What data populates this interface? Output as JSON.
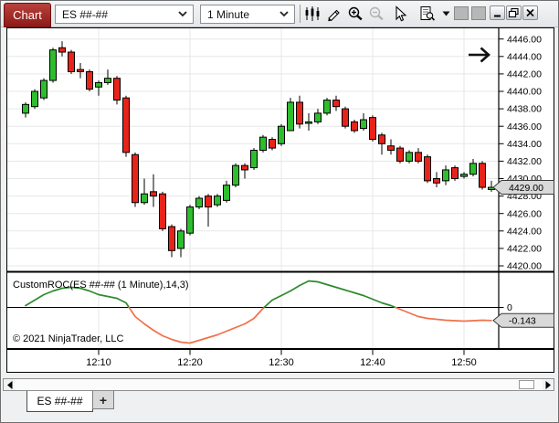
{
  "window": {
    "tab_label": "Chart"
  },
  "toolbar": {
    "instrument": "ES ##-##",
    "interval": "1 Minute"
  },
  "chart": {
    "price_marker": "4429.00",
    "indicator_label": "CustomROC(ES ##-## (1 Minute),14,3)",
    "indicator_zero_label": "0",
    "indicator_marker": "-0.143",
    "copyright": "© 2021 NinjaTrader, LLC"
  },
  "colors": {
    "candle_up": "#2ebd2e",
    "candle_down": "#e8231a",
    "candle_outline": "#000000",
    "roc_positive": "#2e8b2e",
    "roc_negative": "#f0714a",
    "grid": "#e7e7e7",
    "marker_bg": "#d9d9d9",
    "axis_text": "#000000",
    "chart_tab_red": "#9b1c1c"
  },
  "chart_data": {
    "type": "candlestick",
    "x_tick_labels": [
      "12:10",
      "12:20",
      "12:30",
      "12:40",
      "12:50"
    ],
    "x_tick_bar_index": [
      8,
      18,
      28,
      38,
      48
    ],
    "grid": true,
    "legend_position": "none",
    "panels": [
      {
        "name": "price",
        "type": "candlestick",
        "y_axis_side": "right",
        "y_tick_labels": [
          "4446.00",
          "4444.00",
          "4442.00",
          "4440.00",
          "4438.00",
          "4436.00",
          "4434.00",
          "4432.00",
          "4430.00",
          "4428.00",
          "4426.00",
          "4424.00",
          "4422.00",
          "4420.00"
        ],
        "ylim": [
          4419.3,
          4447.3
        ],
        "last_price": 4429.0,
        "ohlc": [
          [
            4437.5,
            4438.75,
            4437.0,
            4438.5
          ],
          [
            4438.25,
            4440.25,
            4438.0,
            4440.0
          ],
          [
            4439.25,
            4441.5,
            4439.0,
            4441.25
          ],
          [
            4441.25,
            4445.0,
            4441.0,
            4444.75
          ],
          [
            4445.0,
            4445.75,
            4444.0,
            4444.5
          ],
          [
            4444.5,
            4444.75,
            4442.0,
            4442.25
          ],
          [
            4442.5,
            4443.25,
            4441.5,
            4442.25
          ],
          [
            4442.25,
            4442.5,
            4440.0,
            4440.25
          ],
          [
            4440.5,
            4441.25,
            4439.5,
            4441.0
          ],
          [
            4441.0,
            4442.5,
            4440.75,
            4441.5
          ],
          [
            4441.5,
            4441.75,
            4438.5,
            4439.0
          ],
          [
            4439.25,
            4439.5,
            4432.5,
            4433.0
          ],
          [
            4432.75,
            4433.0,
            4426.75,
            4427.25
          ],
          [
            4427.25,
            4430.0,
            4427.0,
            4428.25
          ],
          [
            4428.5,
            4430.5,
            4426.75,
            4428.0
          ],
          [
            4428.25,
            4428.5,
            4424.0,
            4424.25
          ],
          [
            4424.5,
            4424.75,
            4421.0,
            4421.75
          ],
          [
            4422.0,
            4424.25,
            4421.0,
            4424.0
          ],
          [
            4423.75,
            4427.0,
            4423.5,
            4426.75
          ],
          [
            4426.75,
            4428.0,
            4426.5,
            4427.75
          ],
          [
            4428.0,
            4428.25,
            4424.5,
            4426.75
          ],
          [
            4427.0,
            4428.25,
            4426.75,
            4428.0
          ],
          [
            4427.5,
            4429.75,
            4427.25,
            4429.25
          ],
          [
            4429.25,
            4431.75,
            4429.0,
            4431.5
          ],
          [
            4431.5,
            4431.75,
            4430.0,
            4431.0
          ],
          [
            4431.25,
            4433.5,
            4431.0,
            4433.25
          ],
          [
            4433.25,
            4435.0,
            4433.0,
            4434.75
          ],
          [
            4434.5,
            4434.75,
            4433.25,
            4433.5
          ],
          [
            4434.0,
            4436.25,
            4433.75,
            4436.0
          ],
          [
            4435.5,
            4439.25,
            4435.5,
            4438.75
          ],
          [
            4438.75,
            4439.5,
            4435.75,
            4436.25
          ],
          [
            4436.5,
            4437.5,
            4435.5,
            4436.5
          ],
          [
            4436.5,
            4438.0,
            4436.25,
            4437.5
          ],
          [
            4437.5,
            4439.25,
            4437.25,
            4439.0
          ],
          [
            4439.0,
            4439.5,
            4437.75,
            4438.25
          ],
          [
            4438.0,
            4438.25,
            4435.75,
            4436.0
          ],
          [
            4436.5,
            4436.75,
            4435.25,
            4435.5
          ],
          [
            4435.75,
            4437.5,
            4435.5,
            4436.75
          ],
          [
            4437.0,
            4437.25,
            4434.25,
            4434.5
          ],
          [
            4435.0,
            4435.25,
            4432.75,
            4434.0
          ],
          [
            4433.75,
            4434.5,
            4432.75,
            4433.25
          ],
          [
            4433.5,
            4433.75,
            4431.75,
            4432.0
          ],
          [
            4432.0,
            4433.25,
            4431.75,
            4433.0
          ],
          [
            4433.0,
            4433.5,
            4431.75,
            4432.0
          ],
          [
            4432.5,
            4432.75,
            4429.5,
            4429.75
          ],
          [
            4430.0,
            4430.75,
            4429.0,
            4429.5
          ],
          [
            4429.75,
            4431.5,
            4429.25,
            4431.0
          ],
          [
            4431.25,
            4431.5,
            4429.75,
            4430.0
          ],
          [
            4430.25,
            4430.75,
            4430.0,
            4430.5
          ],
          [
            4430.5,
            4432.25,
            4430.25,
            4431.75
          ],
          [
            4431.75,
            4432.0,
            4428.75,
            4429.0
          ],
          [
            4428.75,
            4429.75,
            4428.5,
            4429.0
          ]
        ]
      },
      {
        "name": "CustomROC",
        "type": "line",
        "zero_line": true,
        "last_value": -0.143,
        "values": [
          0.02,
          0.08,
          0.14,
          0.18,
          0.21,
          0.22,
          0.21,
          0.18,
          0.14,
          0.12,
          0.1,
          0.05,
          -0.1,
          -0.18,
          -0.25,
          -0.31,
          -0.35,
          -0.38,
          -0.39,
          -0.36,
          -0.33,
          -0.3,
          -0.26,
          -0.22,
          -0.18,
          -0.12,
          -0.01,
          0.08,
          0.13,
          0.18,
          0.24,
          0.29,
          0.28,
          0.25,
          0.22,
          0.19,
          0.16,
          0.13,
          0.09,
          0.05,
          0.02,
          -0.02,
          -0.06,
          -0.1,
          -0.12,
          -0.13,
          -0.14,
          -0.145,
          -0.15,
          -0.145,
          -0.14,
          -0.143
        ]
      }
    ]
  },
  "tabs": {
    "active": "ES ##-##",
    "add_tab": "+"
  }
}
